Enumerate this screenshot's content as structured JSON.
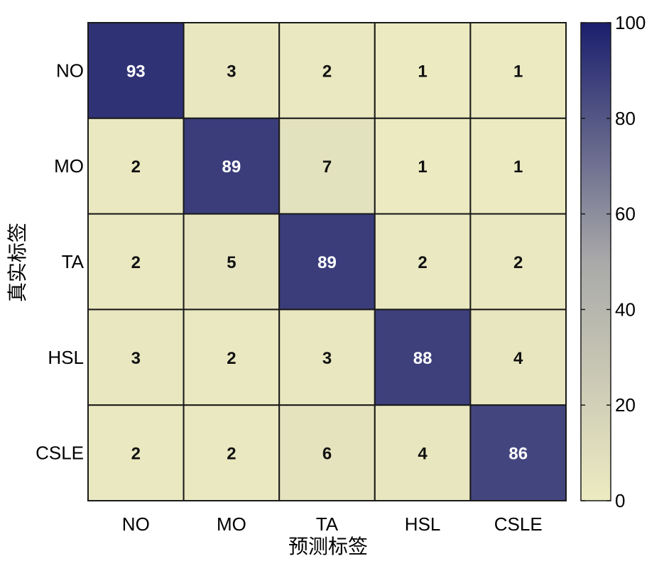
{
  "chart_data": {
    "type": "heatmap",
    "title": "",
    "xlabel": "预测标签",
    "ylabel": "真实标签",
    "x_categories": [
      "NO",
      "MO",
      "TA",
      "HSL",
      "CSLE"
    ],
    "y_categories": [
      "NO",
      "MO",
      "TA",
      "HSL",
      "CSLE"
    ],
    "values": [
      [
        93,
        3,
        2,
        1,
        1
      ],
      [
        2,
        89,
        7,
        1,
        1
      ],
      [
        2,
        5,
        89,
        2,
        2
      ],
      [
        3,
        2,
        3,
        88,
        4
      ],
      [
        2,
        2,
        6,
        4,
        86
      ]
    ],
    "colorbar": {
      "range": [
        0,
        100
      ],
      "ticks": [
        "0",
        "20",
        "40",
        "60",
        "80",
        "100"
      ],
      "low_color": "#edebc1",
      "mid_color": "#a9a9a9",
      "high_color": "#1b1f6d"
    },
    "grid": true
  }
}
